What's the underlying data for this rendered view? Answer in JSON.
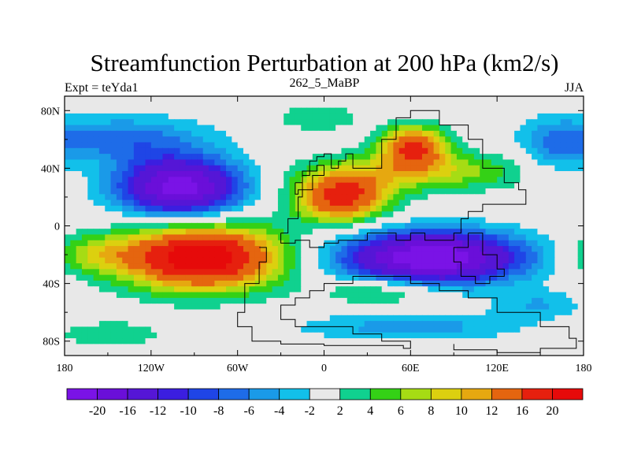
{
  "chart_data": {
    "type": "heatmap",
    "title": "Streamfunction Perturbation at 200 hPa (km2/s)",
    "subtitle_left": "Expt = teYda1",
    "subtitle_center": "262_5_MaBP",
    "subtitle_right": "JJA",
    "xlim": [
      -180,
      180
    ],
    "ylim": [
      -90,
      90
    ],
    "xticks": [
      {
        "value": -180,
        "label": "180"
      },
      {
        "value": -120,
        "label": "120W"
      },
      {
        "value": -60,
        "label": "60W"
      },
      {
        "value": 0,
        "label": "0"
      },
      {
        "value": 60,
        "label": "60E"
      },
      {
        "value": 120,
        "label": "120E"
      },
      {
        "value": 180,
        "label": "180"
      }
    ],
    "yticks": [
      {
        "value": 80,
        "label": "80N"
      },
      {
        "value": 40,
        "label": "40N"
      },
      {
        "value": 0,
        "label": "0"
      },
      {
        "value": -40,
        "label": "40S"
      },
      {
        "value": -80,
        "label": "80S"
      }
    ],
    "colorbar": {
      "levels": [
        -20,
        -16,
        -12,
        -10,
        -8,
        -6,
        -4,
        -2,
        2,
        4,
        6,
        8,
        10,
        12,
        16,
        20
      ],
      "labels": [
        "-20",
        "-16",
        "-12",
        "-10",
        "-8",
        "-6",
        "-4",
        "-2",
        "2",
        "4",
        "6",
        "8",
        "10",
        "12",
        "16",
        "20"
      ],
      "colors": [
        "#7a13e6",
        "#6a0fd9",
        "#5516d6",
        "#3b1ee0",
        "#1f45e6",
        "#1e6ce8",
        "#1a9ae8",
        "#12c0ea",
        "#e8e8e8",
        "#10d18f",
        "#34d116",
        "#a6dc14",
        "#dcd00f",
        "#e6a810",
        "#e5650f",
        "#e6200e",
        "#e60a0a"
      ]
    },
    "features": [
      {
        "name": "nh-mid-trough",
        "lon": -100,
        "lat": 27,
        "rx": 42,
        "ry": 20,
        "amp": -22
      },
      {
        "name": "nh-pacific-low-rim",
        "lon": -140,
        "lat": 60,
        "rx": 60,
        "ry": 16,
        "amp": -7
      },
      {
        "name": "sh-south-atlantic-high",
        "lon": -85,
        "lat": -22,
        "rx": 55,
        "ry": 22,
        "amp": 24
      },
      {
        "name": "sh-pacific-high-tail",
        "lon": -160,
        "lat": -20,
        "rx": 30,
        "ry": 14,
        "amp": 6
      },
      {
        "name": "nh-tethys-high",
        "lon": 12,
        "lat": 20,
        "rx": 32,
        "ry": 17,
        "amp": 18
      },
      {
        "name": "nh-asia-high",
        "lon": 62,
        "lat": 55,
        "rx": 22,
        "ry": 14,
        "amp": 16
      },
      {
        "name": "nh-ridge-link",
        "lon": 70,
        "lat": 38,
        "rx": 70,
        "ry": 14,
        "amp": 8
      },
      {
        "name": "sh-indian-trough",
        "lon": 75,
        "lat": -22,
        "rx": 62,
        "ry": 18,
        "amp": -24
      },
      {
        "name": "sh-south-band",
        "lon": 40,
        "lat": -45,
        "rx": 40,
        "ry": 10,
        "amp": 6
      },
      {
        "name": "sh-subpolar-blue",
        "lon": 60,
        "lat": -70,
        "rx": 80,
        "ry": 10,
        "amp": -5
      },
      {
        "name": "polar-green-west",
        "lon": -150,
        "lat": -75,
        "rx": 40,
        "ry": 9,
        "amp": 4
      },
      {
        "name": "nh-arctic-green",
        "lon": -5,
        "lat": 75,
        "rx": 30,
        "ry": 10,
        "amp": 4
      },
      {
        "name": "nh-east-blue",
        "lon": 160,
        "lat": 55,
        "rx": 25,
        "ry": 20,
        "amp": -5
      },
      {
        "name": "sh-east-pacific-blue",
        "lon": 150,
        "lat": -55,
        "rx": 30,
        "ry": 10,
        "amp": -4
      }
    ],
    "coastlines": [
      {
        "name": "laurussia-block",
        "points": [
          [
            -30,
            -5
          ],
          [
            -25,
            5
          ],
          [
            -18,
            20
          ],
          [
            -15,
            35
          ],
          [
            -10,
            45
          ],
          [
            -5,
            48
          ],
          [
            0,
            50
          ],
          [
            5,
            40
          ],
          [
            10,
            45
          ],
          [
            15,
            50
          ],
          [
            20,
            40
          ],
          [
            30,
            40
          ],
          [
            40,
            60
          ],
          [
            50,
            75
          ],
          [
            60,
            80
          ],
          [
            75,
            80
          ],
          [
            80,
            70
          ],
          [
            100,
            60
          ],
          [
            110,
            40
          ],
          [
            125,
            30
          ],
          [
            135,
            25
          ],
          [
            140,
            15
          ],
          [
            125,
            15
          ],
          [
            110,
            10
          ],
          [
            100,
            5
          ],
          [
            95,
            -5
          ],
          [
            90,
            -10
          ],
          [
            80,
            -10
          ],
          [
            70,
            -5
          ],
          [
            60,
            -10
          ],
          [
            50,
            -5
          ],
          [
            40,
            -5
          ],
          [
            30,
            -10
          ],
          [
            20,
            -10
          ],
          [
            10,
            -12
          ],
          [
            0,
            -15
          ],
          [
            -10,
            -10
          ],
          [
            -20,
            -12
          ],
          [
            -30,
            -5
          ]
        ]
      },
      {
        "name": "gondwana-block",
        "points": [
          [
            -45,
            -15
          ],
          [
            -40,
            -25
          ],
          [
            -45,
            -40
          ],
          [
            -55,
            -60
          ],
          [
            -60,
            -70
          ],
          [
            -50,
            -80
          ],
          [
            -30,
            -82
          ],
          [
            0,
            -83
          ],
          [
            30,
            -83
          ],
          [
            55,
            -85
          ],
          [
            60,
            -80
          ],
          [
            40,
            -75
          ],
          [
            20,
            -70
          ],
          [
            0,
            -70
          ],
          [
            -20,
            -65
          ],
          [
            -30,
            -55
          ],
          [
            -20,
            -50
          ],
          [
            -10,
            -45
          ],
          [
            0,
            -40
          ],
          [
            20,
            -35
          ],
          [
            40,
            -35
          ],
          [
            60,
            -40
          ],
          [
            80,
            -45
          ],
          [
            100,
            -50
          ],
          [
            120,
            -60
          ],
          [
            150,
            -70
          ],
          [
            170,
            -78
          ],
          [
            175,
            -85
          ],
          [
            150,
            -88
          ],
          [
            120,
            -86
          ],
          [
            90,
            -82
          ]
        ]
      },
      {
        "name": "east-fragment",
        "points": [
          [
            100,
            -5
          ],
          [
            110,
            -20
          ],
          [
            120,
            -30
          ],
          [
            125,
            -35
          ],
          [
            115,
            -40
          ],
          [
            105,
            -35
          ],
          [
            95,
            -25
          ],
          [
            90,
            -15
          ],
          [
            100,
            -5
          ]
        ]
      },
      {
        "name": "north-fragment",
        "points": [
          [
            -20,
            30
          ],
          [
            -15,
            38
          ],
          [
            -5,
            42
          ],
          [
            0,
            35
          ],
          [
            -8,
            25
          ],
          [
            -18,
            22
          ],
          [
            -20,
            30
          ]
        ]
      }
    ]
  }
}
